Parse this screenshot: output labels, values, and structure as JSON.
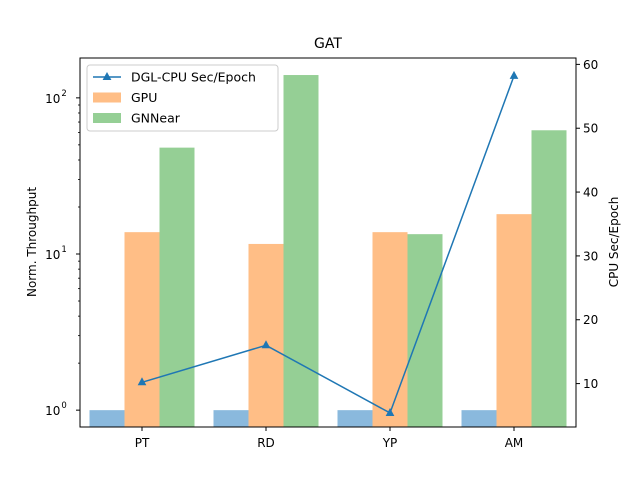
{
  "chart_data": {
    "type": "bar",
    "title": "GAT",
    "categories": [
      "PT",
      "RD",
      "YP",
      "AM"
    ],
    "ylabel": "Norm. Throughput",
    "y2label": "CPU Sec/Epoch",
    "yscale": "log",
    "ylim": [
      0.78,
      180
    ],
    "y2lim": [
      3.2,
      61
    ],
    "y_ticks": [
      {
        "base": "10",
        "exp": "0",
        "value": 1
      },
      {
        "base": "10",
        "exp": "1",
        "value": 10
      },
      {
        "base": "10",
        "exp": "2",
        "value": 100
      }
    ],
    "y2_ticks": [
      "10",
      "20",
      "30",
      "40",
      "50",
      "60"
    ],
    "series": [
      {
        "name": "",
        "kind": "bar",
        "axis": "left",
        "color": "#8ab9dd",
        "values": [
          1,
          1,
          1,
          1
        ]
      },
      {
        "name": "GPU",
        "kind": "bar",
        "axis": "left",
        "color": "#ffbe86",
        "values": [
          13.8,
          11.6,
          13.8,
          18
        ]
      },
      {
        "name": "GNNear",
        "kind": "bar",
        "axis": "left",
        "color": "#95cf95",
        "values": [
          48,
          140,
          13.4,
          62
        ]
      },
      {
        "name": "DGL-CPU Sec/Epoch",
        "kind": "line",
        "axis": "right",
        "color": "#1f77b4",
        "marker": "triangle",
        "values": [
          10.2,
          16,
          5.4,
          58.2
        ]
      }
    ],
    "legend": {
      "position": "upper-left",
      "entries": [
        "DGL-CPU Sec/Epoch",
        "GPU",
        "GNNear"
      ]
    },
    "grid": false
  }
}
